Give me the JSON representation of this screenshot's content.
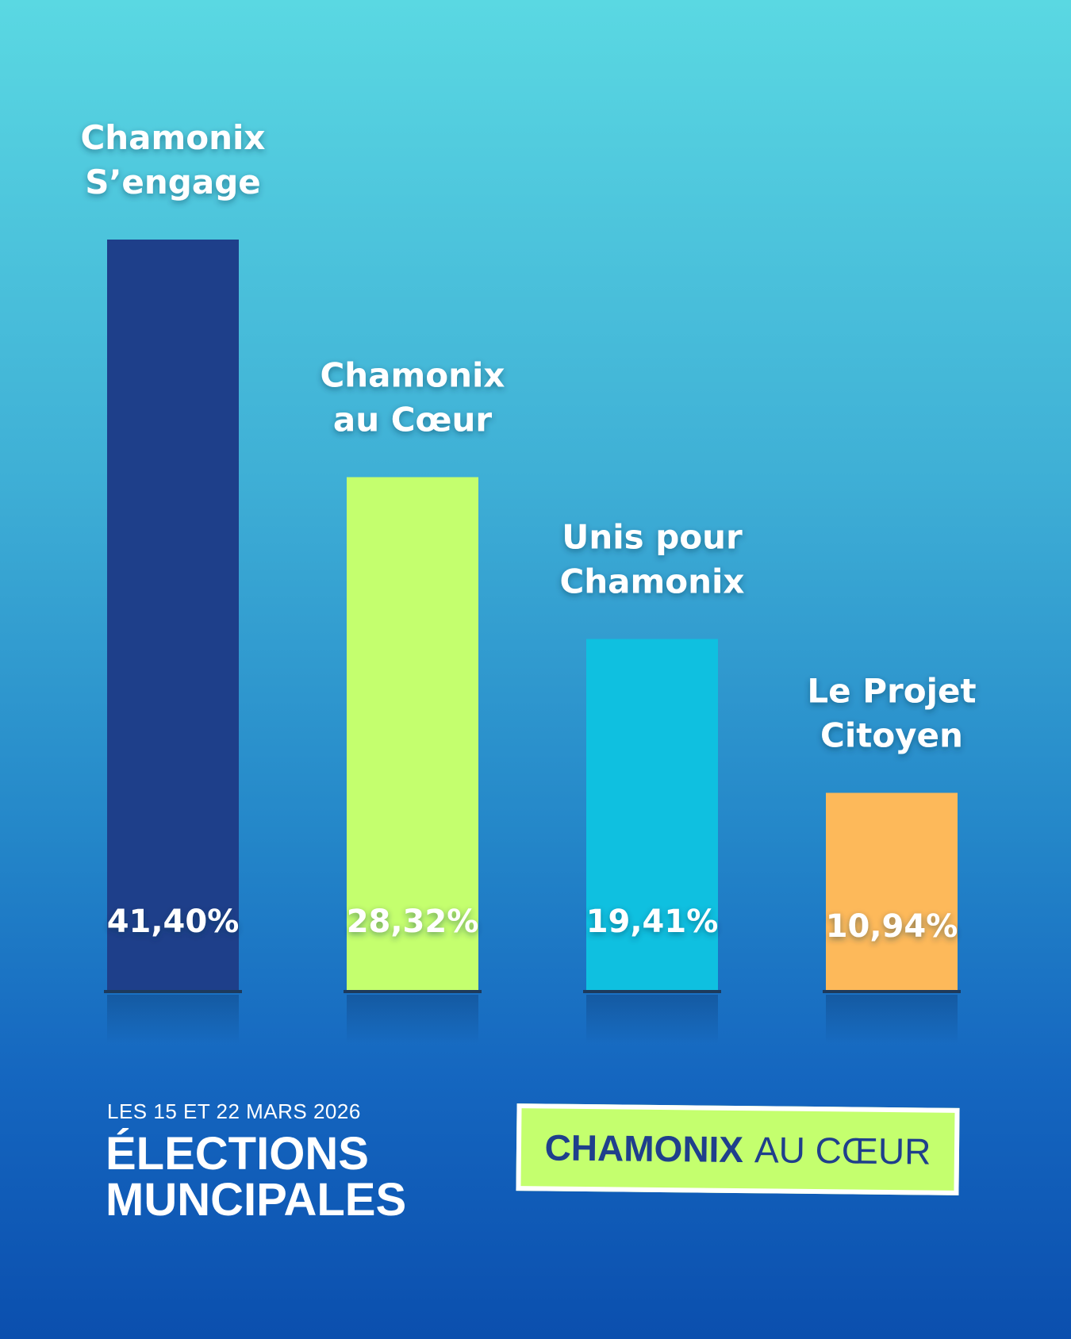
{
  "chart_data": {
    "type": "bar",
    "categories": [
      [
        "Chamonix",
        "S’engage"
      ],
      [
        "Chamonix",
        "au Cœur"
      ],
      [
        "Unis pour",
        "Chamonix"
      ],
      [
        "Le Projet",
        "Citoyen"
      ]
    ],
    "values": [
      41.4,
      28.32,
      19.41,
      10.94
    ],
    "value_labels": [
      "41,40%",
      "28,32%",
      "19,41%",
      "10,94%"
    ],
    "colors": [
      "#1e3f8a",
      "#c4ff6e",
      "#0fc0e0",
      "#fdb95a"
    ],
    "value_label_colors": [
      "#ffffff",
      "#ffffff",
      "#ffffff",
      "#ffffff"
    ],
    "ylim": [
      0,
      41.4
    ],
    "grid": false,
    "legend": "none"
  },
  "footer": {
    "date": "LES 15 ET 22 MARS 2026",
    "title_line1": "ÉLECTIONS",
    "title_line2": "MUNCIPALES"
  },
  "logo": {
    "bold": "CHAMONIX",
    "light": "AU CŒUR"
  }
}
